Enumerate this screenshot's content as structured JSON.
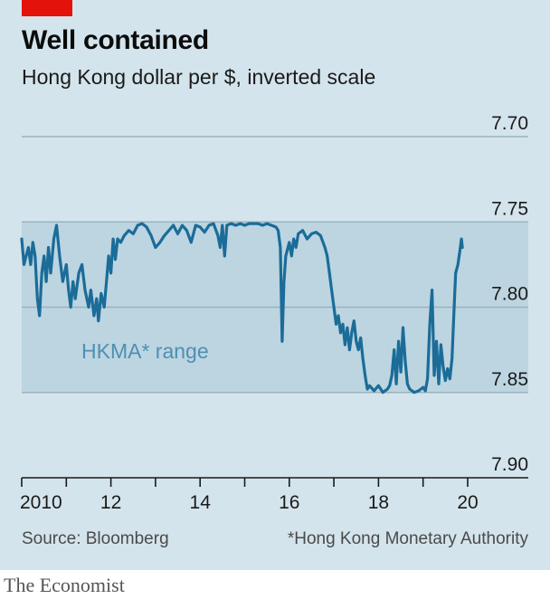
{
  "header": {
    "title": "Well contained",
    "subtitle": "Hong Kong dollar per $, inverted scale"
  },
  "footer": {
    "source": "Source: Bloomberg",
    "note": "*Hong Kong Monetary Authority",
    "brand": "The Economist"
  },
  "colors": {
    "accent": "#e3120b",
    "panel": "#d4e4ec",
    "band": "#bcd5e1",
    "line": "#1b6c98",
    "annotation": "#4f8fb3"
  },
  "chart_data": {
    "type": "line",
    "title": "Well contained",
    "subtitle": "Hong Kong dollar per $, inverted scale",
    "y_inverted": true,
    "ylim": [
      7.7,
      7.9
    ],
    "xlim": [
      2010.0,
      2020.3
    ],
    "y_ticks": [
      {
        "value": 7.7,
        "label": "7.70"
      },
      {
        "value": 7.75,
        "label": "7.75"
      },
      {
        "value": 7.8,
        "label": "7.80"
      },
      {
        "value": 7.85,
        "label": "7.85"
      },
      {
        "value": 7.9,
        "label": "7.90"
      }
    ],
    "x_ticks": [
      {
        "value": 2010,
        "label": "2010"
      },
      {
        "value": 2012,
        "label": "12"
      },
      {
        "value": 2014,
        "label": "14"
      },
      {
        "value": 2016,
        "label": "16"
      },
      {
        "value": 2018,
        "label": "18"
      },
      {
        "value": 2020,
        "label": "20"
      }
    ],
    "band": {
      "from": 7.75,
      "to": 7.85,
      "label": "HKMA* range"
    },
    "series": [
      {
        "values": [
          [
            2010.0,
            7.76
          ],
          [
            2010.05,
            7.775
          ],
          [
            2010.1,
            7.77
          ],
          [
            2010.15,
            7.765
          ],
          [
            2010.2,
            7.775
          ],
          [
            2010.25,
            7.762
          ],
          [
            2010.3,
            7.77
          ],
          [
            2010.35,
            7.795
          ],
          [
            2010.4,
            7.805
          ],
          [
            2010.45,
            7.78
          ],
          [
            2010.5,
            7.77
          ],
          [
            2010.55,
            7.785
          ],
          [
            2010.6,
            7.765
          ],
          [
            2010.65,
            7.78
          ],
          [
            2010.72,
            7.76
          ],
          [
            2010.78,
            7.752
          ],
          [
            2010.85,
            7.77
          ],
          [
            2010.92,
            7.785
          ],
          [
            2011.0,
            7.775
          ],
          [
            2011.05,
            7.79
          ],
          [
            2011.1,
            7.8
          ],
          [
            2011.15,
            7.785
          ],
          [
            2011.2,
            7.795
          ],
          [
            2011.28,
            7.78
          ],
          [
            2011.35,
            7.775
          ],
          [
            2011.42,
            7.79
          ],
          [
            2011.5,
            7.8
          ],
          [
            2011.55,
            7.79
          ],
          [
            2011.62,
            7.805
          ],
          [
            2011.68,
            7.795
          ],
          [
            2011.72,
            7.808
          ],
          [
            2011.78,
            7.792
          ],
          [
            2011.85,
            7.8
          ],
          [
            2011.9,
            7.785
          ],
          [
            2011.95,
            7.77
          ],
          [
            2012.0,
            7.78
          ],
          [
            2012.05,
            7.76
          ],
          [
            2012.1,
            7.772
          ],
          [
            2012.15,
            7.76
          ],
          [
            2012.22,
            7.762
          ],
          [
            2012.3,
            7.758
          ],
          [
            2012.4,
            7.755
          ],
          [
            2012.5,
            7.757
          ],
          [
            2012.6,
            7.752
          ],
          [
            2012.7,
            7.751
          ],
          [
            2012.8,
            7.753
          ],
          [
            2012.9,
            7.758
          ],
          [
            2013.0,
            7.765
          ],
          [
            2013.1,
            7.762
          ],
          [
            2013.2,
            7.758
          ],
          [
            2013.3,
            7.755
          ],
          [
            2013.4,
            7.752
          ],
          [
            2013.5,
            7.757
          ],
          [
            2013.6,
            7.752
          ],
          [
            2013.7,
            7.755
          ],
          [
            2013.8,
            7.762
          ],
          [
            2013.9,
            7.752
          ],
          [
            2014.0,
            7.753
          ],
          [
            2014.1,
            7.756
          ],
          [
            2014.2,
            7.752
          ],
          [
            2014.3,
            7.751
          ],
          [
            2014.4,
            7.758
          ],
          [
            2014.45,
            7.765
          ],
          [
            2014.5,
            7.752
          ],
          [
            2014.55,
            7.77
          ],
          [
            2014.6,
            7.752
          ],
          [
            2014.7,
            7.751
          ],
          [
            2014.8,
            7.752
          ],
          [
            2014.9,
            7.751
          ],
          [
            2015.0,
            7.752
          ],
          [
            2015.1,
            7.751
          ],
          [
            2015.2,
            7.751
          ],
          [
            2015.3,
            7.751
          ],
          [
            2015.4,
            7.752
          ],
          [
            2015.5,
            7.751
          ],
          [
            2015.6,
            7.752
          ],
          [
            2015.7,
            7.753
          ],
          [
            2015.75,
            7.755
          ],
          [
            2015.8,
            7.765
          ],
          [
            2015.84,
            7.82
          ],
          [
            2015.88,
            7.785
          ],
          [
            2015.92,
            7.77
          ],
          [
            2016.0,
            7.762
          ],
          [
            2016.05,
            7.77
          ],
          [
            2016.1,
            7.76
          ],
          [
            2016.15,
            7.765
          ],
          [
            2016.2,
            7.757
          ],
          [
            2016.3,
            7.755
          ],
          [
            2016.4,
            7.76
          ],
          [
            2016.5,
            7.757
          ],
          [
            2016.6,
            7.756
          ],
          [
            2016.7,
            7.758
          ],
          [
            2016.8,
            7.765
          ],
          [
            2016.85,
            7.77
          ],
          [
            2016.9,
            7.78
          ],
          [
            2016.95,
            7.79
          ],
          [
            2017.0,
            7.8
          ],
          [
            2017.05,
            7.81
          ],
          [
            2017.1,
            7.805
          ],
          [
            2017.15,
            7.815
          ],
          [
            2017.2,
            7.81
          ],
          [
            2017.25,
            7.822
          ],
          [
            2017.3,
            7.812
          ],
          [
            2017.35,
            7.825
          ],
          [
            2017.4,
            7.815
          ],
          [
            2017.45,
            7.808
          ],
          [
            2017.5,
            7.82
          ],
          [
            2017.55,
            7.825
          ],
          [
            2017.6,
            7.818
          ],
          [
            2017.65,
            7.83
          ],
          [
            2017.7,
            7.84
          ],
          [
            2017.75,
            7.848
          ],
          [
            2017.8,
            7.846
          ],
          [
            2017.9,
            7.849
          ],
          [
            2018.0,
            7.846
          ],
          [
            2018.1,
            7.85
          ],
          [
            2018.2,
            7.848
          ],
          [
            2018.25,
            7.846
          ],
          [
            2018.3,
            7.84
          ],
          [
            2018.35,
            7.825
          ],
          [
            2018.4,
            7.845
          ],
          [
            2018.45,
            7.82
          ],
          [
            2018.5,
            7.838
          ],
          [
            2018.55,
            7.812
          ],
          [
            2018.6,
            7.832
          ],
          [
            2018.65,
            7.845
          ],
          [
            2018.7,
            7.848
          ],
          [
            2018.8,
            7.85
          ],
          [
            2018.9,
            7.849
          ],
          [
            2019.0,
            7.847
          ],
          [
            2019.05,
            7.849
          ],
          [
            2019.1,
            7.842
          ],
          [
            2019.15,
            7.81
          ],
          [
            2019.2,
            7.79
          ],
          [
            2019.25,
            7.84
          ],
          [
            2019.3,
            7.82
          ],
          [
            2019.35,
            7.845
          ],
          [
            2019.4,
            7.822
          ],
          [
            2019.45,
            7.835
          ],
          [
            2019.5,
            7.843
          ],
          [
            2019.55,
            7.836
          ],
          [
            2019.6,
            7.842
          ],
          [
            2019.65,
            7.83
          ],
          [
            2019.7,
            7.798
          ],
          [
            2019.73,
            7.78
          ],
          [
            2019.78,
            7.775
          ],
          [
            2019.82,
            7.768
          ],
          [
            2019.86,
            7.76
          ],
          [
            2019.88,
            7.765
          ]
        ]
      }
    ]
  }
}
